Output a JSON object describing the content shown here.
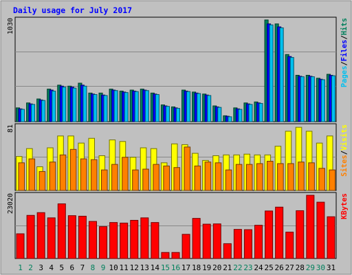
{
  "chart_data": [
    {
      "type": "bar",
      "title": "Daily usage for July 2017",
      "panel": "hits",
      "categories": [
        "1",
        "2",
        "3",
        "4",
        "5",
        "6",
        "7",
        "8",
        "9",
        "10",
        "11",
        "12",
        "13",
        "14",
        "15",
        "16",
        "17",
        "18",
        "19",
        "20",
        "21",
        "22",
        "23",
        "24",
        "25",
        "26",
        "27",
        "28",
        "29",
        "30",
        "31"
      ],
      "ymax_label": "1030",
      "ylim": [
        0,
        1030
      ],
      "grid": true,
      "series": [
        {
          "name": "Hits",
          "color": "#00805c",
          "values": [
            140,
            190,
            230,
            330,
            370,
            360,
            390,
            290,
            290,
            330,
            310,
            320,
            330,
            290,
            170,
            150,
            320,
            300,
            280,
            160,
            60,
            140,
            190,
            200,
            1030,
            990,
            680,
            470,
            470,
            440,
            480
          ]
        },
        {
          "name": "Files",
          "color": "#0000ff",
          "values": [
            130,
            180,
            220,
            320,
            360,
            350,
            370,
            280,
            270,
            320,
            300,
            310,
            320,
            280,
            160,
            140,
            310,
            290,
            270,
            150,
            55,
            130,
            180,
            190,
            990,
            960,
            660,
            460,
            460,
            430,
            470
          ]
        },
        {
          "name": "Pages",
          "color": "#00c0f0",
          "values": [
            125,
            175,
            215,
            310,
            350,
            340,
            360,
            275,
            265,
            315,
            295,
            305,
            315,
            275,
            155,
            135,
            305,
            285,
            265,
            145,
            50,
            125,
            175,
            185,
            980,
            950,
            650,
            455,
            455,
            425,
            465
          ]
        }
      ],
      "legend": [
        "Pages",
        "/",
        "Files",
        "/",
        "Hits"
      ]
    },
    {
      "type": "bar",
      "panel": "visits",
      "categories": [
        "1",
        "2",
        "3",
        "4",
        "5",
        "6",
        "7",
        "8",
        "9",
        "10",
        "11",
        "12",
        "13",
        "14",
        "15",
        "16",
        "17",
        "18",
        "19",
        "20",
        "21",
        "22",
        "23",
        "24",
        "25",
        "26",
        "27",
        "28",
        "29",
        "30",
        "31"
      ],
      "ymax_label": "81",
      "ylim": [
        0,
        81
      ],
      "grid": true,
      "series": [
        {
          "name": "Visits",
          "color": "#ffff00",
          "values": [
            43,
            53,
            30,
            54,
            69,
            69,
            60,
            66,
            44,
            64,
            62,
            42,
            54,
            53,
            35,
            59,
            58,
            47,
            38,
            44,
            45,
            45,
            46,
            45,
            45,
            56,
            75,
            80,
            75,
            60,
            69
          ]
        },
        {
          "name": "Sites",
          "color": "#ff8000",
          "values": [
            35,
            40,
            24,
            36,
            45,
            52,
            40,
            39,
            26,
            33,
            42,
            26,
            27,
            33,
            31,
            29,
            55,
            31,
            36,
            35,
            26,
            33,
            33,
            34,
            37,
            34,
            34,
            36,
            35,
            28,
            26
          ]
        }
      ],
      "legend": [
        "Sites",
        "/",
        "Visits"
      ]
    },
    {
      "type": "bar",
      "panel": "kbytes",
      "categories": [
        "1",
        "2",
        "3",
        "4",
        "5",
        "6",
        "7",
        "8",
        "9",
        "10",
        "11",
        "12",
        "13",
        "14",
        "15",
        "16",
        "17",
        "18",
        "19",
        "20",
        "21",
        "22",
        "23",
        "24",
        "25",
        "26",
        "27",
        "28",
        "29",
        "30",
        "31"
      ],
      "ymax_label": "23020",
      "ylim": [
        0,
        23020
      ],
      "grid": true,
      "series": [
        {
          "name": "KBytes",
          "color": "#ff0000",
          "values": [
            9000,
            15700,
            16700,
            14800,
            19900,
            15600,
            15400,
            13500,
            11600,
            13100,
            12900,
            13900,
            14800,
            13100,
            2200,
            2200,
            8800,
            14600,
            12500,
            12600,
            5400,
            10600,
            10500,
            12100,
            17300,
            18700,
            9600,
            17400,
            23020,
            20500,
            15200
          ]
        }
      ],
      "legend": [
        "KBytes"
      ]
    }
  ],
  "x_labels": [
    "1",
    "2",
    "3",
    "4",
    "5",
    "6",
    "7",
    "8",
    "9",
    "10",
    "11",
    "12",
    "13",
    "14",
    "15",
    "16",
    "17",
    "18",
    "19",
    "20",
    "21",
    "22",
    "23",
    "24",
    "25",
    "26",
    "27",
    "28",
    "29",
    "30",
    "31"
  ],
  "weekend_days": [
    1,
    2,
    8,
    9,
    15,
    16,
    22,
    23,
    29,
    30
  ],
  "colors": {
    "background": "#c0c0c0",
    "title": "#0000ff",
    "weekday_label": "#000000",
    "weekend_label": "#00805c",
    "grid": "#888888"
  }
}
